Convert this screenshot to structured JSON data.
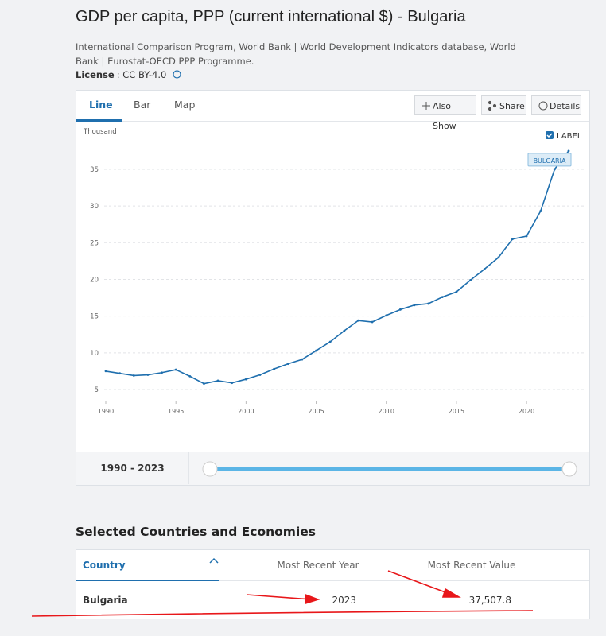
{
  "header": {
    "title": "GDP per capita, PPP (current international $) - Bulgaria",
    "source": "International Comparison Program, World Bank | World Development Indicators database, World Bank | Eurostat-OECD PPP Programme.",
    "license_label": "License",
    "license_value": ": CC BY-4.0"
  },
  "tabs": [
    "Line",
    "Bar",
    "Map"
  ],
  "buttons": [
    "Also Show",
    "Share",
    "Details"
  ],
  "chart_controls": {
    "label_toggle": "LABEL"
  },
  "chart_data": {
    "type": "line",
    "y_unit": "Thousand",
    "x": [
      1990,
      1991,
      1992,
      1993,
      1994,
      1995,
      1996,
      1997,
      1998,
      1999,
      2000,
      2001,
      2002,
      2003,
      2004,
      2005,
      2006,
      2007,
      2008,
      2009,
      2010,
      2011,
      2012,
      2013,
      2014,
      2015,
      2016,
      2017,
      2018,
      2019,
      2020,
      2021,
      2022,
      2023
    ],
    "series": [
      {
        "name": "BULGARIA",
        "color": "#1f6fae",
        "values": [
          7.5,
          7.2,
          6.9,
          7.0,
          7.3,
          7.7,
          6.8,
          5.8,
          6.2,
          5.9,
          6.4,
          7.0,
          7.8,
          8.5,
          9.1,
          10.3,
          11.5,
          13.0,
          14.4,
          14.2,
          15.1,
          15.9,
          16.5,
          16.7,
          17.6,
          18.3,
          19.9,
          21.4,
          23.0,
          25.5,
          25.9,
          29.3,
          35.0,
          37.5
        ]
      }
    ],
    "xlim": [
      1990,
      2023
    ],
    "xticks": [
      1990,
      1995,
      2000,
      2005,
      2010,
      2015,
      2020
    ],
    "ylim": [
      3.7,
      39
    ],
    "yticks": [
      5,
      10,
      15,
      20,
      25,
      30,
      35
    ],
    "grid": true
  },
  "range": "1990 - 2023",
  "table": {
    "title": "Selected Countries and Economies",
    "columns": [
      "Country",
      "Most Recent Year",
      "Most Recent Value"
    ],
    "rows": [
      [
        "Bulgaria",
        "2023",
        "37,507.8"
      ]
    ]
  }
}
